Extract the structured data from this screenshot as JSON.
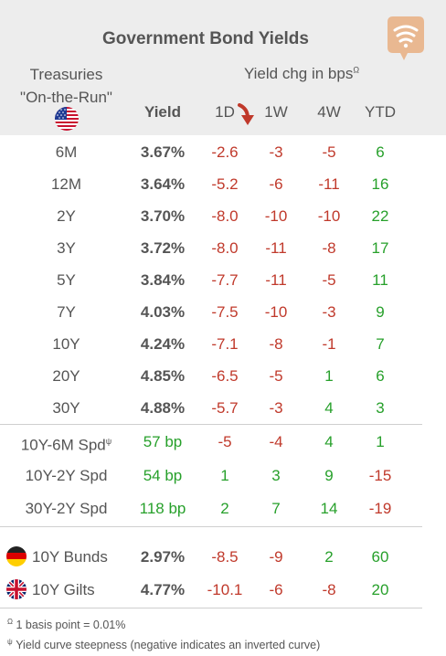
{
  "title": "Government Bond Yields",
  "treasuries_label_line1": "Treasuries",
  "treasuries_label_line2": "\"On-the-Run\"",
  "yield_chg_label": "Yield chg in bps",
  "yield_chg_marker": "Ω",
  "columns": {
    "yield": "Yield",
    "d1": "1D",
    "w1": "1W",
    "w4": "4W",
    "ytd": "YTD"
  },
  "colors": {
    "negative": "#c0392b",
    "positive": "#27a02b",
    "header_bg": "#ededed",
    "logo": "#e9b891"
  },
  "treasury_rows": [
    {
      "label": "6M",
      "yield": "3.67%",
      "d1": "-2.6",
      "w1": "-3",
      "w4": "-5",
      "ytd": "6"
    },
    {
      "label": "12M",
      "yield": "3.64%",
      "d1": "-5.2",
      "w1": "-6",
      "w4": "-11",
      "ytd": "16"
    },
    {
      "label": "2Y",
      "yield": "3.70%",
      "d1": "-8.0",
      "w1": "-10",
      "w4": "-10",
      "ytd": "22"
    },
    {
      "label": "3Y",
      "yield": "3.72%",
      "d1": "-8.0",
      "w1": "-11",
      "w4": "-8",
      "ytd": "17"
    },
    {
      "label": "5Y",
      "yield": "3.84%",
      "d1": "-7.7",
      "w1": "-11",
      "w4": "-5",
      "ytd": "11"
    },
    {
      "label": "7Y",
      "yield": "4.03%",
      "d1": "-7.5",
      "w1": "-10",
      "w4": "-3",
      "ytd": "9"
    },
    {
      "label": "10Y",
      "yield": "4.24%",
      "d1": "-7.1",
      "w1": "-8",
      "w4": "-1",
      "ytd": "7"
    },
    {
      "label": "20Y",
      "yield": "4.85%",
      "d1": "-6.5",
      "w1": "-5",
      "w4": "1",
      "ytd": "6"
    },
    {
      "label": "30Y",
      "yield": "4.88%",
      "d1": "-5.7",
      "w1": "-3",
      "w4": "4",
      "ytd": "3"
    }
  ],
  "spread_rows": [
    {
      "label": "10Y-6M Spd",
      "marker": "ψ",
      "yield": "57 bp",
      "d1": "-5",
      "w1": "-4",
      "w4": "4",
      "ytd": "1"
    },
    {
      "label": "10Y-2Y Spd",
      "marker": "",
      "yield": "54 bp",
      "d1": "1",
      "w1": "3",
      "w4": "9",
      "ytd": "-15"
    },
    {
      "label": "30Y-2Y Spd",
      "marker": "",
      "yield": "118 bp",
      "d1": "2",
      "w1": "7",
      "w4": "14",
      "ytd": "-19"
    }
  ],
  "intl_rows": [
    {
      "label": "10Y Bunds",
      "flag": "germany-flag",
      "yield": "2.97%",
      "d1": "-8.5",
      "w1": "-9",
      "w4": "2",
      "ytd": "60"
    },
    {
      "label": "10Y Gilts",
      "flag": "uk-flag",
      "yield": "4.77%",
      "d1": "-10.1",
      "w1": "-6",
      "w4": "-8",
      "ytd": "20"
    }
  ],
  "footnotes": [
    {
      "marker": "Ω",
      "text": "1 basis point = 0.01%"
    },
    {
      "marker": "ψ",
      "text": "Yield curve steepness (negative indicates an inverted curve)"
    }
  ]
}
